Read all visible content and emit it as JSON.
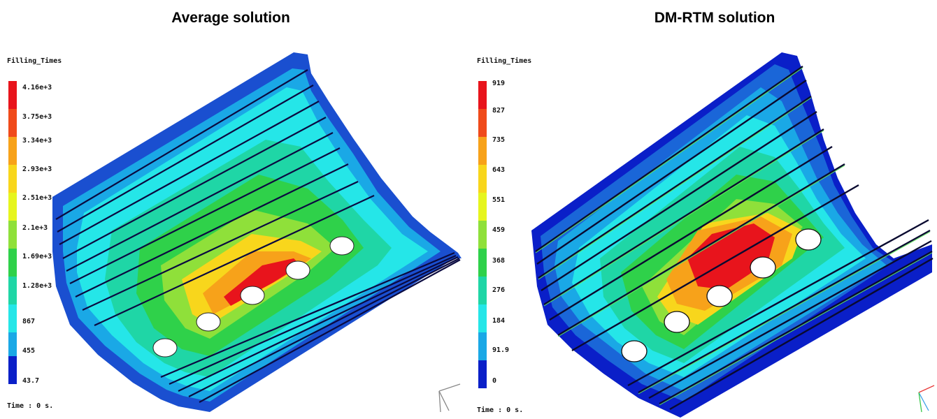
{
  "panels": [
    {
      "title": "Average solution",
      "legend_title": "Filling_Times",
      "legend_labels": [
        "4.16e+3",
        "3.75e+3",
        "3.34e+3",
        "2.93e+3",
        "2.51e+3",
        "2.1e+3",
        "1.69e+3",
        "1.28e+3",
        "867",
        "455",
        "43.7"
      ],
      "time_label": "Time : 0 s."
    },
    {
      "title": "DM-RTM solution",
      "legend_title": "Filling_Times",
      "legend_labels": [
        "919",
        "827",
        "735",
        "643",
        "551",
        "459",
        "368",
        "276",
        "184",
        "91.9",
        "0"
      ],
      "time_label": "Time : 0 s."
    }
  ],
  "colors": {
    "scale": [
      "#e8141c",
      "#f04a1a",
      "#f7a21a",
      "#f8d61c",
      "#e6f51e",
      "#8fe03a",
      "#2fd14a",
      "#1fd6a6",
      "#25e6e8",
      "#1aa8e6",
      "#1a66d8",
      "#0a1fc8"
    ]
  }
}
